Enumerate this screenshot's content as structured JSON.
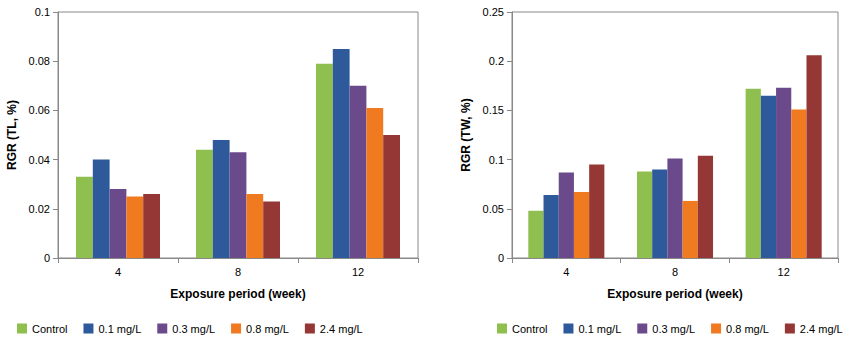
{
  "chart_data": [
    {
      "type": "bar",
      "x_label": "Exposure period (week)",
      "y_label": "RGR (TL, %)",
      "categories": [
        "4",
        "8",
        "12"
      ],
      "series": [
        {
          "name": "Control",
          "color": "#8fbf4f",
          "values": [
            0.033,
            0.044,
            0.079
          ]
        },
        {
          "name": "0.1 mg/L",
          "color": "#2e5a9c",
          "values": [
            0.04,
            0.048,
            0.085
          ]
        },
        {
          "name": "0.3 mg/L",
          "color": "#6b4a8c",
          "values": [
            0.028,
            0.043,
            0.07
          ]
        },
        {
          "name": "0.8 mg/L",
          "color": "#f07a1f",
          "values": [
            0.025,
            0.026,
            0.061
          ]
        },
        {
          "name": "2.4 mg/L",
          "color": "#953735",
          "values": [
            0.026,
            0.023,
            0.05
          ]
        }
      ],
      "ylim": [
        0,
        0.1
      ],
      "yticks": [
        0,
        0.02,
        0.04,
        0.06,
        0.08,
        0.1
      ],
      "grid": false,
      "legend": "bottom"
    },
    {
      "type": "bar",
      "x_label": "Exposure period (week)",
      "y_label": "RGR (TW, %)",
      "categories": [
        "4",
        "8",
        "12"
      ],
      "series": [
        {
          "name": "Control",
          "color": "#8fbf4f",
          "values": [
            0.048,
            0.088,
            0.172
          ]
        },
        {
          "name": "0.1 mg/L",
          "color": "#2e5a9c",
          "values": [
            0.064,
            0.09,
            0.165
          ]
        },
        {
          "name": "0.3 mg/L",
          "color": "#6b4a8c",
          "values": [
            0.087,
            0.101,
            0.173
          ]
        },
        {
          "name": "0.8 mg/L",
          "color": "#f07a1f",
          "values": [
            0.067,
            0.058,
            0.151
          ]
        },
        {
          "name": "2.4 mg/L",
          "color": "#953735",
          "values": [
            0.095,
            0.104,
            0.206
          ]
        }
      ],
      "ylim": [
        0,
        0.25
      ],
      "yticks": [
        0,
        0.05,
        0.1,
        0.15,
        0.2,
        0.25
      ],
      "grid": false,
      "legend": "bottom"
    }
  ]
}
